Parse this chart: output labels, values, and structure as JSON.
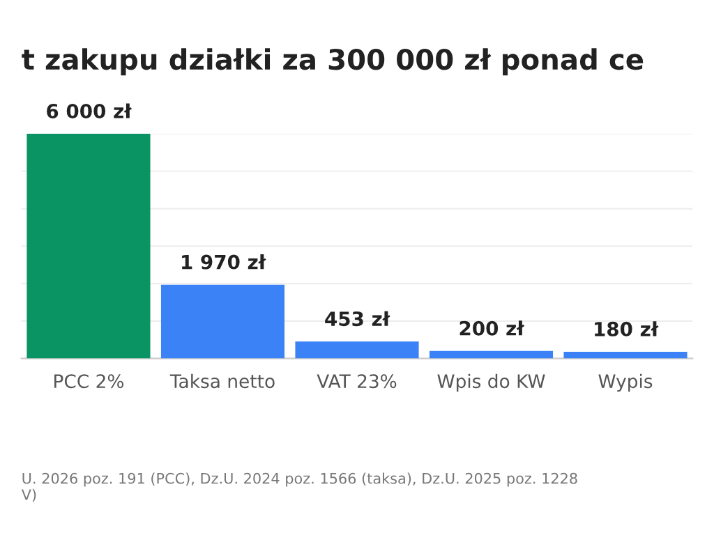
{
  "chart_data": {
    "type": "bar",
    "title": "t zakupu działki za 300 000 zł ponad ce",
    "categories": [
      "PCC 2%",
      "Taksa netto",
      "VAT 23%",
      "Wpis do KW",
      "Wypis"
    ],
    "values": [
      6000,
      1970,
      453,
      200,
      180
    ],
    "colors": [
      "#0a9464",
      "#3b82f6",
      "#3b82f6",
      "#3b82f6",
      "#3b82f6"
    ],
    "value_labels": [
      "6 000 zł",
      "1 970 zł",
      "453 zł",
      "200 zł",
      "180 zł"
    ],
    "ylim": [
      0,
      6000
    ],
    "yticks": [
      {
        "value": 0,
        "label": null
      },
      {
        "value": 1000,
        "label": null
      },
      {
        "value": 2000,
        "label": null
      },
      {
        "value": 3000,
        "label": null
      },
      {
        "value": 4000,
        "label": null
      },
      {
        "value": 5000,
        "label": null
      },
      {
        "value": 6000,
        "label": null
      }
    ],
    "tick_labels": "x",
    "grid": "y",
    "annotations": [
      "U. 2026 poz. 191 (PCC), Dz.U. 2024 poz. 1566 (taksa), Dz.U. 2025 poz. 1228\nV)"
    ]
  }
}
